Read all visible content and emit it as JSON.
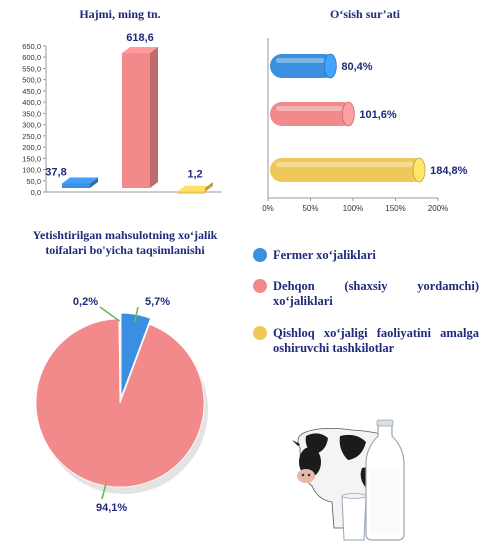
{
  "colors": {
    "fermer": "#3a8fe0",
    "dehqon": "#f28a8c",
    "qishloq": "#f0c85a",
    "label": "#1f2a7a"
  },
  "legend": [
    {
      "label": "Fermer xo‘jaliklari"
    },
    {
      "label": "Dehqon (shaxsiy yordamchi) xo‘jaliklari"
    },
    {
      "label": "Qishloq xo‘jaligi faoliyatini amalga oshiruvchi tashkilotlar"
    }
  ],
  "chart_data": [
    {
      "type": "bar",
      "title": "Hajmi, ming tn.",
      "categories": [
        "Fermer xo‘jaliklari",
        "Dehqon (shaxsiy yordamchi) xo‘jaliklari",
        "Qishloq xo‘jaligi faoliyatini amalga oshiruvchi tashkilotlar"
      ],
      "values": [
        37.8,
        618.6,
        1.2
      ],
      "data_labels": [
        "37,8",
        "618,6",
        "1,2"
      ],
      "ylim": [
        0,
        650
      ],
      "yticks": [
        "0,0",
        "50,0",
        "100,0",
        "150,0",
        "200,0",
        "250,0",
        "300,0",
        "350,0",
        "400,0",
        "450,0",
        "500,0",
        "550,0",
        "600,0",
        "650,0"
      ]
    },
    {
      "type": "bar",
      "orientation": "horizontal",
      "title": "O‘sish sur’ati",
      "categories": [
        "Fermer xo‘jaliklari",
        "Dehqon (shaxsiy yordamchi) xo‘jaliklari",
        "Qishloq xo‘jaligi faoliyatini amalga oshiruvchi tashkilotlar"
      ],
      "values": [
        80.4,
        101.6,
        184.8
      ],
      "data_labels": [
        "80,4%",
        "101,6%",
        "184,8%"
      ],
      "xlim": [
        0,
        200
      ],
      "xticks": [
        "0%",
        "50%",
        "100%",
        "150%",
        "200%"
      ]
    },
    {
      "type": "pie",
      "title": "Yetishtirilgan mahsulotning xo‘jalik toifalari bo'yicha taqsimlanishi",
      "categories": [
        "Fermer xo‘jaliklari",
        "Dehqon (shaxsiy yordamchi) xo‘jaliklari",
        "Qishloq xo‘jaligi faoliyatini amalga oshiruvchi tashkilotlar"
      ],
      "values": [
        5.7,
        94.1,
        0.2
      ],
      "data_labels": [
        "5,7%",
        "94,1%",
        "0,2%"
      ]
    }
  ]
}
